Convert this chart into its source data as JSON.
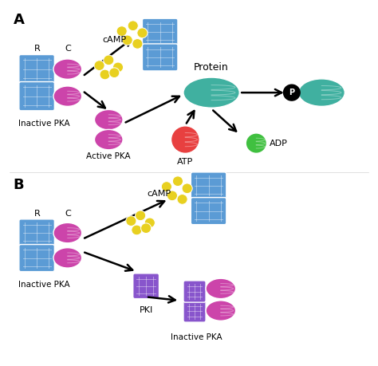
{
  "background_color": "#ffffff",
  "panel_A_label": "A",
  "panel_B_label": "B",
  "colors": {
    "blue_R": "#5b9bd5",
    "magenta_C": "#cc44aa",
    "yellow_cAMP": "#e8d020",
    "teal_protein": "#40b0a0",
    "red_ATP": "#e84040",
    "green_ADP": "#40c040",
    "black": "#000000",
    "white": "#ffffff",
    "purple_PKI": "#8855cc"
  },
  "text": {
    "R": "R",
    "C": "C",
    "inactive_PKA": "Inactive PKA",
    "active_PKA": "Active PKA",
    "cAMP": "cAMP",
    "protein": "Protein",
    "ATP": "ATP",
    "ADP": "ADP",
    "P": "P",
    "PKI": "PKI"
  }
}
